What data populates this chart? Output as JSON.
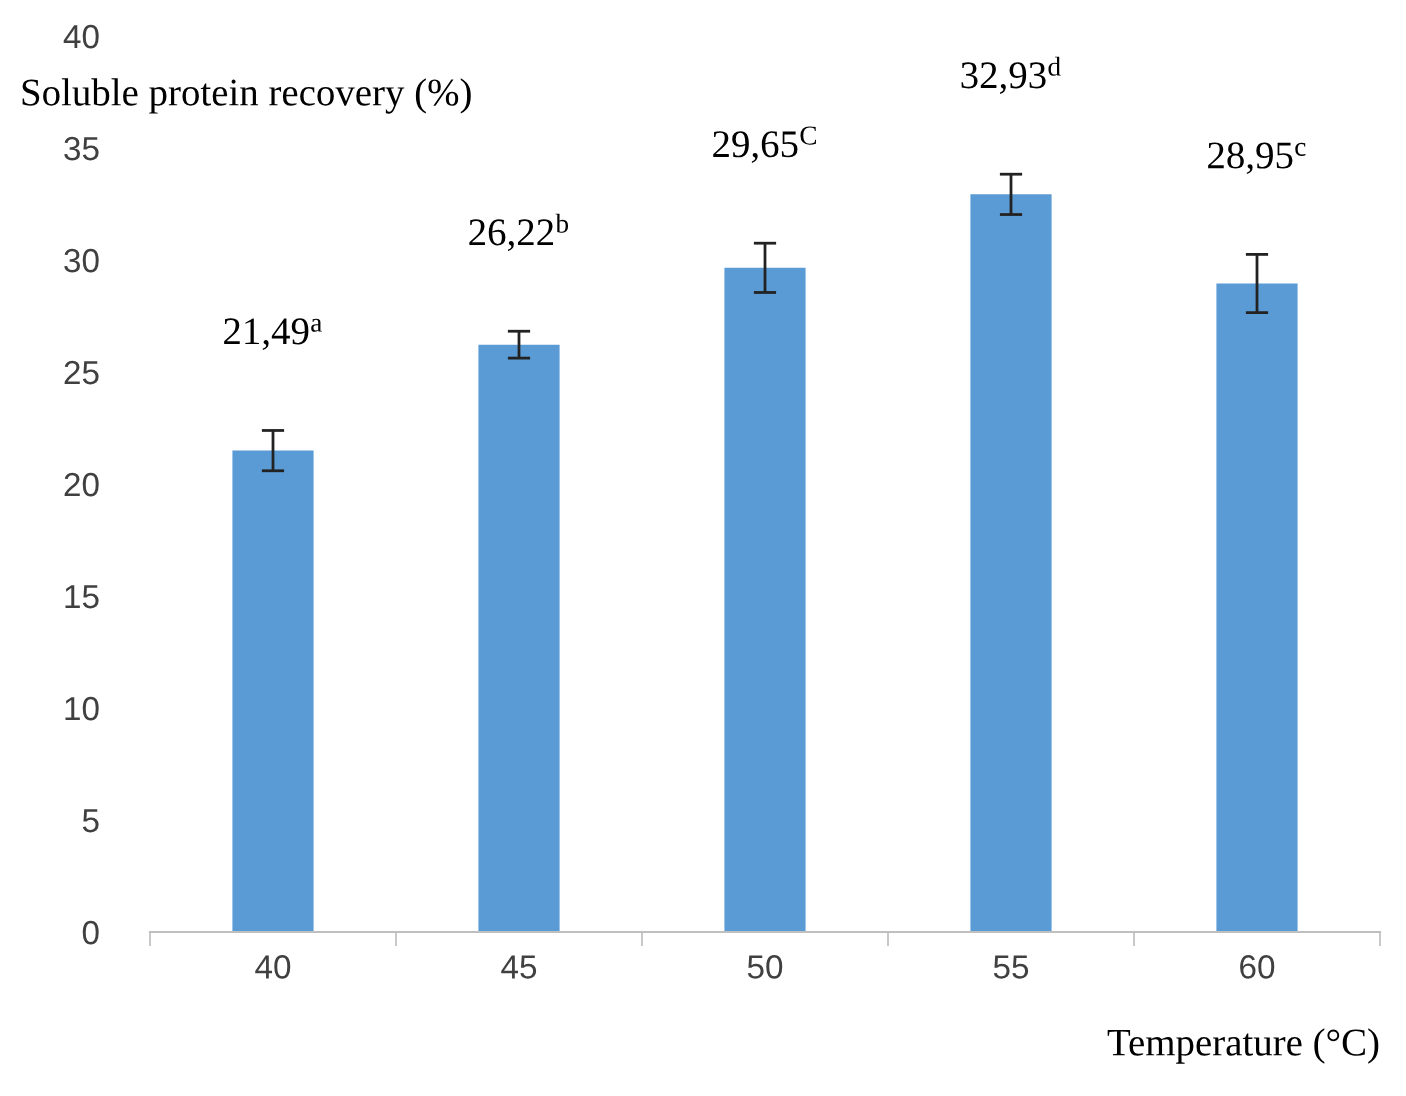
{
  "chart_data": {
    "type": "bar",
    "xlabel": "Temperature (°C)",
    "ylabel": "Soluble protein recovery (%)",
    "categories": [
      "40",
      "45",
      "50",
      "55",
      "60"
    ],
    "values": [
      21.49,
      26.22,
      29.65,
      32.93,
      28.95
    ],
    "errors": [
      0.9,
      0.6,
      1.1,
      0.9,
      1.3
    ],
    "value_labels": [
      "21,49$^{a}$",
      "26,22$^{b}$",
      "29,65$^{C}$",
      "32,93$^{d}$",
      "28,95$^{c}$"
    ],
    "color": "#5b9bd5",
    "ylim": [
      0,
      40
    ],
    "yticks": [
      0,
      5,
      10,
      15,
      20,
      25,
      30,
      35,
      40
    ],
    "grid": false
  }
}
